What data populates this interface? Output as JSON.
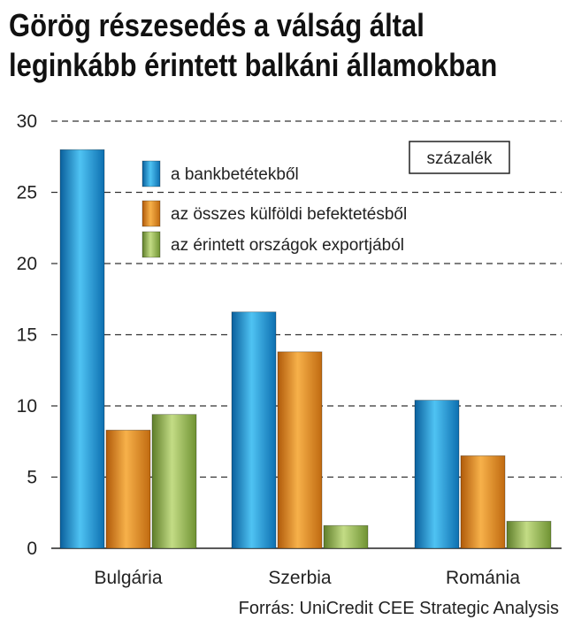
{
  "title_lines": [
    "Görög részesedés a válság által",
    "leginkább érintett balkáni államokban"
  ],
  "unit_label": "százalék",
  "source": "Forrás: UniCredit CEE Strategic Analysis",
  "colors": {
    "blue": "#1b8fd2",
    "orange": "#e0841a",
    "green": "#8db14a"
  },
  "chart_data": {
    "type": "bar",
    "categories": [
      "Bulgária",
      "Szerbia",
      "Románia"
    ],
    "series": [
      {
        "name": "a bankbetétekből",
        "values": [
          28,
          16.6,
          10.4
        ],
        "color": "blue"
      },
      {
        "name": "az összes külföldi befektetésből",
        "values": [
          8.3,
          13.8,
          6.5
        ],
        "color": "orange"
      },
      {
        "name": "az érintett országok exportjából",
        "values": [
          9.4,
          1.6,
          1.9
        ],
        "color": "green"
      }
    ],
    "ylim": [
      0,
      30
    ],
    "yticks": [
      0,
      5,
      10,
      15,
      20,
      25,
      30
    ],
    "grid": true,
    "legend_position": "top-right"
  }
}
